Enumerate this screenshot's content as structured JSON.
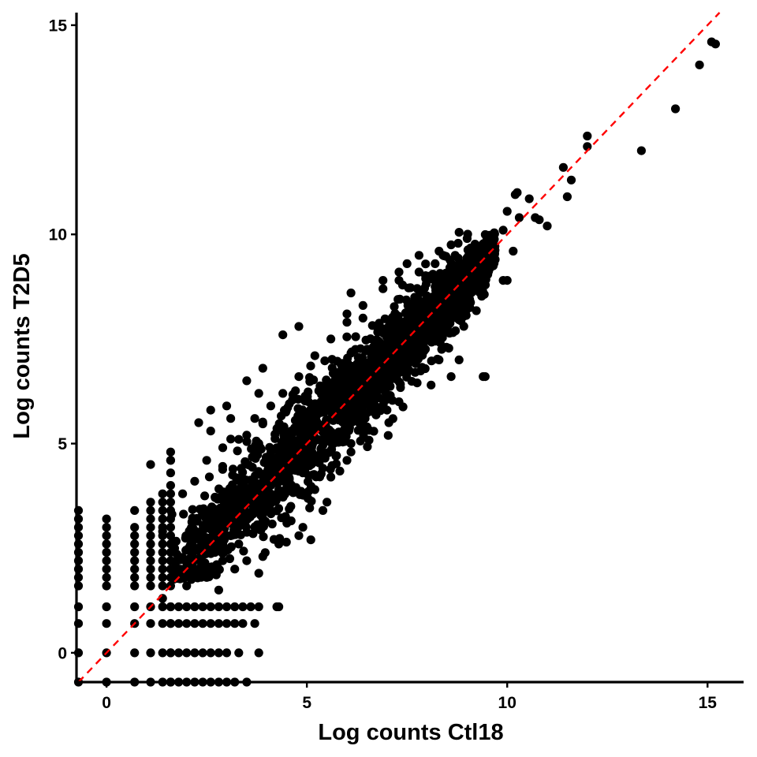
{
  "chart_data": {
    "type": "scatter",
    "title": "",
    "xlabel": "Log counts Ctl18",
    "ylabel": "Log counts T2D5",
    "xlim": [
      -0.75,
      15.9
    ],
    "ylim": [
      -0.7,
      15.3
    ],
    "x_ticks": [
      0,
      5,
      10,
      15
    ],
    "y_ticks": [
      0,
      5,
      10,
      15
    ],
    "x_tick_labels": [
      "0",
      "5",
      "10",
      "15"
    ],
    "y_tick_labels": [
      "0",
      "5",
      "10",
      "15"
    ],
    "grid": false,
    "legend": "none",
    "point_color": "#000000",
    "reference_line": {
      "type": "y = x",
      "style": "dashed",
      "color": "#ff0000"
    },
    "series": [
      {
        "values": [
          [
            15.1,
            14.6
          ],
          [
            15.2,
            14.55
          ],
          [
            14.8,
            14.05
          ],
          [
            14.2,
            13.0
          ],
          [
            13.35,
            12.0
          ],
          [
            12.0,
            12.35
          ],
          [
            12.0,
            12.1
          ],
          [
            11.4,
            11.6
          ],
          [
            11.6,
            11.3
          ],
          [
            11.5,
            10.9
          ],
          [
            10.25,
            11.0
          ],
          [
            10.2,
            10.95
          ],
          [
            10.55,
            10.85
          ],
          [
            10.7,
            10.4
          ],
          [
            11.0,
            10.2
          ],
          [
            10.8,
            10.35
          ],
          [
            10.3,
            10.4
          ],
          [
            10.0,
            10.55
          ],
          [
            9.9,
            10.1
          ],
          [
            10.15,
            9.6
          ],
          [
            9.9,
            8.9
          ],
          [
            10.0,
            8.9
          ],
          [
            9.4,
            6.6
          ],
          [
            9.45,
            6.6
          ],
          [
            8.8,
            10.05
          ],
          [
            9.0,
            9.9
          ],
          [
            9.2,
            9.6
          ],
          [
            9.5,
            9.8
          ],
          [
            8.6,
            9.75
          ],
          [
            8.4,
            9.5
          ],
          [
            8.3,
            9.6
          ],
          [
            7.8,
            9.5
          ],
          [
            7.5,
            9.3
          ],
          [
            7.3,
            9.1
          ],
          [
            6.9,
            8.9
          ],
          [
            6.1,
            8.6
          ],
          [
            6.0,
            8.1
          ],
          [
            6.4,
            8.0
          ],
          [
            4.8,
            7.8
          ],
          [
            4.4,
            7.6
          ],
          [
            3.9,
            6.8
          ],
          [
            3.5,
            6.5
          ],
          [
            3.8,
            6.2
          ],
          [
            3.0,
            5.9
          ],
          [
            2.6,
            5.8
          ],
          [
            2.3,
            5.5
          ],
          [
            2.6,
            5.3
          ],
          [
            1.6,
            4.8
          ],
          [
            1.6,
            4.6
          ],
          [
            1.1,
            4.5
          ],
          [
            3.1,
            5.6
          ],
          [
            3.5,
            5.2
          ],
          [
            3.8,
            5.0
          ],
          [
            8.3,
            7.0
          ],
          [
            8.6,
            6.6
          ],
          [
            8.8,
            7.0
          ],
          [
            8.1,
            6.4
          ],
          [
            7.7,
            6.7
          ],
          [
            7.3,
            6.0
          ],
          [
            7.0,
            5.8
          ],
          [
            6.1,
            5.0
          ],
          [
            5.6,
            4.2
          ],
          [
            5.2,
            3.9
          ],
          [
            5.5,
            3.6
          ],
          [
            5.4,
            3.4
          ],
          [
            6.0,
            4.6
          ],
          [
            6.1,
            4.8
          ],
          [
            6.5,
            5.4
          ],
          [
            4.9,
            3.0
          ],
          [
            4.5,
            3.1
          ],
          [
            4.8,
            2.8
          ],
          [
            4.3,
            2.6
          ],
          [
            5.1,
            2.7
          ],
          [
            3.9,
            2.3
          ],
          [
            4.6,
            3.5
          ],
          [
            3.5,
            2.2
          ],
          [
            3.8,
            1.9
          ],
          [
            4.3,
            1.1
          ],
          [
            4.25,
            1.1
          ],
          [
            3.2,
            2.0
          ],
          [
            2.8,
            1.5
          ],
          [
            2.0,
            1.6
          ],
          [
            1.4,
            1.3
          ],
          [
            1.4,
            2.9
          ],
          [
            1.9,
            3.8
          ],
          [
            2.2,
            4.1
          ],
          [
            2.5,
            4.6
          ],
          [
            2.9,
            4.9
          ],
          [
            3.3,
            5.1
          ],
          [
            3.7,
            5.6
          ],
          [
            4.1,
            5.9
          ],
          [
            4.4,
            6.2
          ],
          [
            4.8,
            6.6
          ],
          [
            5.2,
            7.1
          ],
          [
            5.6,
            7.5
          ],
          [
            6.0,
            7.9
          ],
          [
            6.4,
            8.3
          ],
          [
            6.9,
            8.7
          ],
          [
            7.3,
            8.9
          ],
          [
            7.8,
            9.1
          ],
          [
            8.2,
            9.3
          ],
          [
            8.7,
            9.5
          ],
          [
            9.1,
            9.6
          ],
          [
            9.5,
            9.7
          ],
          [
            9.7,
            9.4
          ],
          [
            9.3,
            9.1
          ],
          [
            8.9,
            8.7
          ],
          [
            8.5,
            8.2
          ],
          [
            8.1,
            7.8
          ],
          [
            7.7,
            7.4
          ],
          [
            7.3,
            6.9
          ],
          [
            6.9,
            6.5
          ],
          [
            6.5,
            6.1
          ],
          [
            6.1,
            5.6
          ],
          [
            5.7,
            5.2
          ],
          [
            5.3,
            4.7
          ],
          [
            4.9,
            4.3
          ],
          [
            4.5,
            3.9
          ],
          [
            4.1,
            3.4
          ],
          [
            3.7,
            3.0
          ],
          [
            3.3,
            2.6
          ],
          [
            2.9,
            2.2
          ],
          [
            2.5,
            1.8
          ],
          [
            2.1,
            1.8
          ],
          [
            1.8,
            2.0
          ]
        ]
      }
    ],
    "column_clusters": [
      {
        "x": -0.7,
        "y_values": [
          -0.7,
          0.0,
          0.7,
          1.1,
          1.6,
          1.8,
          2.0,
          2.2,
          2.4,
          2.6,
          2.8,
          3.0,
          3.2,
          3.4
        ]
      },
      {
        "x": 0.0,
        "y_values": [
          -0.7,
          0.0,
          0.7,
          1.1,
          1.6,
          1.8,
          2.0,
          2.2,
          2.4,
          2.6,
          2.8,
          3.0,
          3.2
        ]
      },
      {
        "x": 0.7,
        "y_values": [
          -0.7,
          0.0,
          0.7,
          1.1,
          1.6,
          1.8,
          2.0,
          2.2,
          2.4,
          2.6,
          2.8,
          3.0,
          3.4
        ]
      },
      {
        "x": 1.1,
        "y_values": [
          -0.7,
          0.0,
          0.7,
          1.1,
          1.6,
          1.8,
          2.0,
          2.2,
          2.4,
          2.6,
          2.8,
          3.0,
          3.2,
          3.4,
          3.6
        ]
      },
      {
        "x": 1.4,
        "y_values": [
          -0.7,
          0.0,
          0.7,
          1.1,
          1.6,
          1.8,
          2.0,
          2.2,
          2.4,
          2.6,
          2.8,
          3.0,
          3.2,
          3.4,
          3.6,
          3.8
        ]
      },
      {
        "x": 1.6,
        "y_values": [
          -0.7,
          0.0,
          0.7,
          1.1,
          1.6,
          1.8,
          2.0,
          2.2,
          2.4,
          2.6,
          2.8,
          3.0,
          3.2,
          3.4,
          3.6,
          3.8,
          4.0,
          4.3,
          4.6
        ]
      }
    ],
    "row_clusters": [
      {
        "y": -0.7,
        "x_values": [
          1.6,
          1.8,
          2.0,
          2.2,
          2.4,
          2.6,
          2.8,
          3.0,
          3.2,
          3.5
        ]
      },
      {
        "y": 0.0,
        "x_values": [
          1.6,
          1.8,
          2.0,
          2.2,
          2.4,
          2.6,
          2.8,
          3.0,
          3.3,
          3.8
        ]
      },
      {
        "y": 0.7,
        "x_values": [
          1.6,
          1.8,
          2.0,
          2.2,
          2.4,
          2.6,
          2.8,
          3.0,
          3.2,
          3.4,
          3.7
        ]
      },
      {
        "y": 1.1,
        "x_values": [
          1.6,
          1.8,
          2.0,
          2.2,
          2.4,
          2.6,
          2.8,
          3.0,
          3.2,
          3.4,
          3.6,
          3.8
        ]
      }
    ],
    "dense_cloud": {
      "description_free_note": "",
      "centerline_points": [
        [
          1.6,
          1.9
        ],
        [
          3.0,
          3.2
        ],
        [
          5.0,
          5.0
        ],
        [
          7.0,
          7.0
        ],
        [
          9.0,
          8.9
        ],
        [
          9.7,
          9.6
        ]
      ],
      "y_spread": [
        1.2,
        1.4,
        1.6,
        1.3,
        0.9,
        0.5
      ],
      "count": 1900
    }
  }
}
